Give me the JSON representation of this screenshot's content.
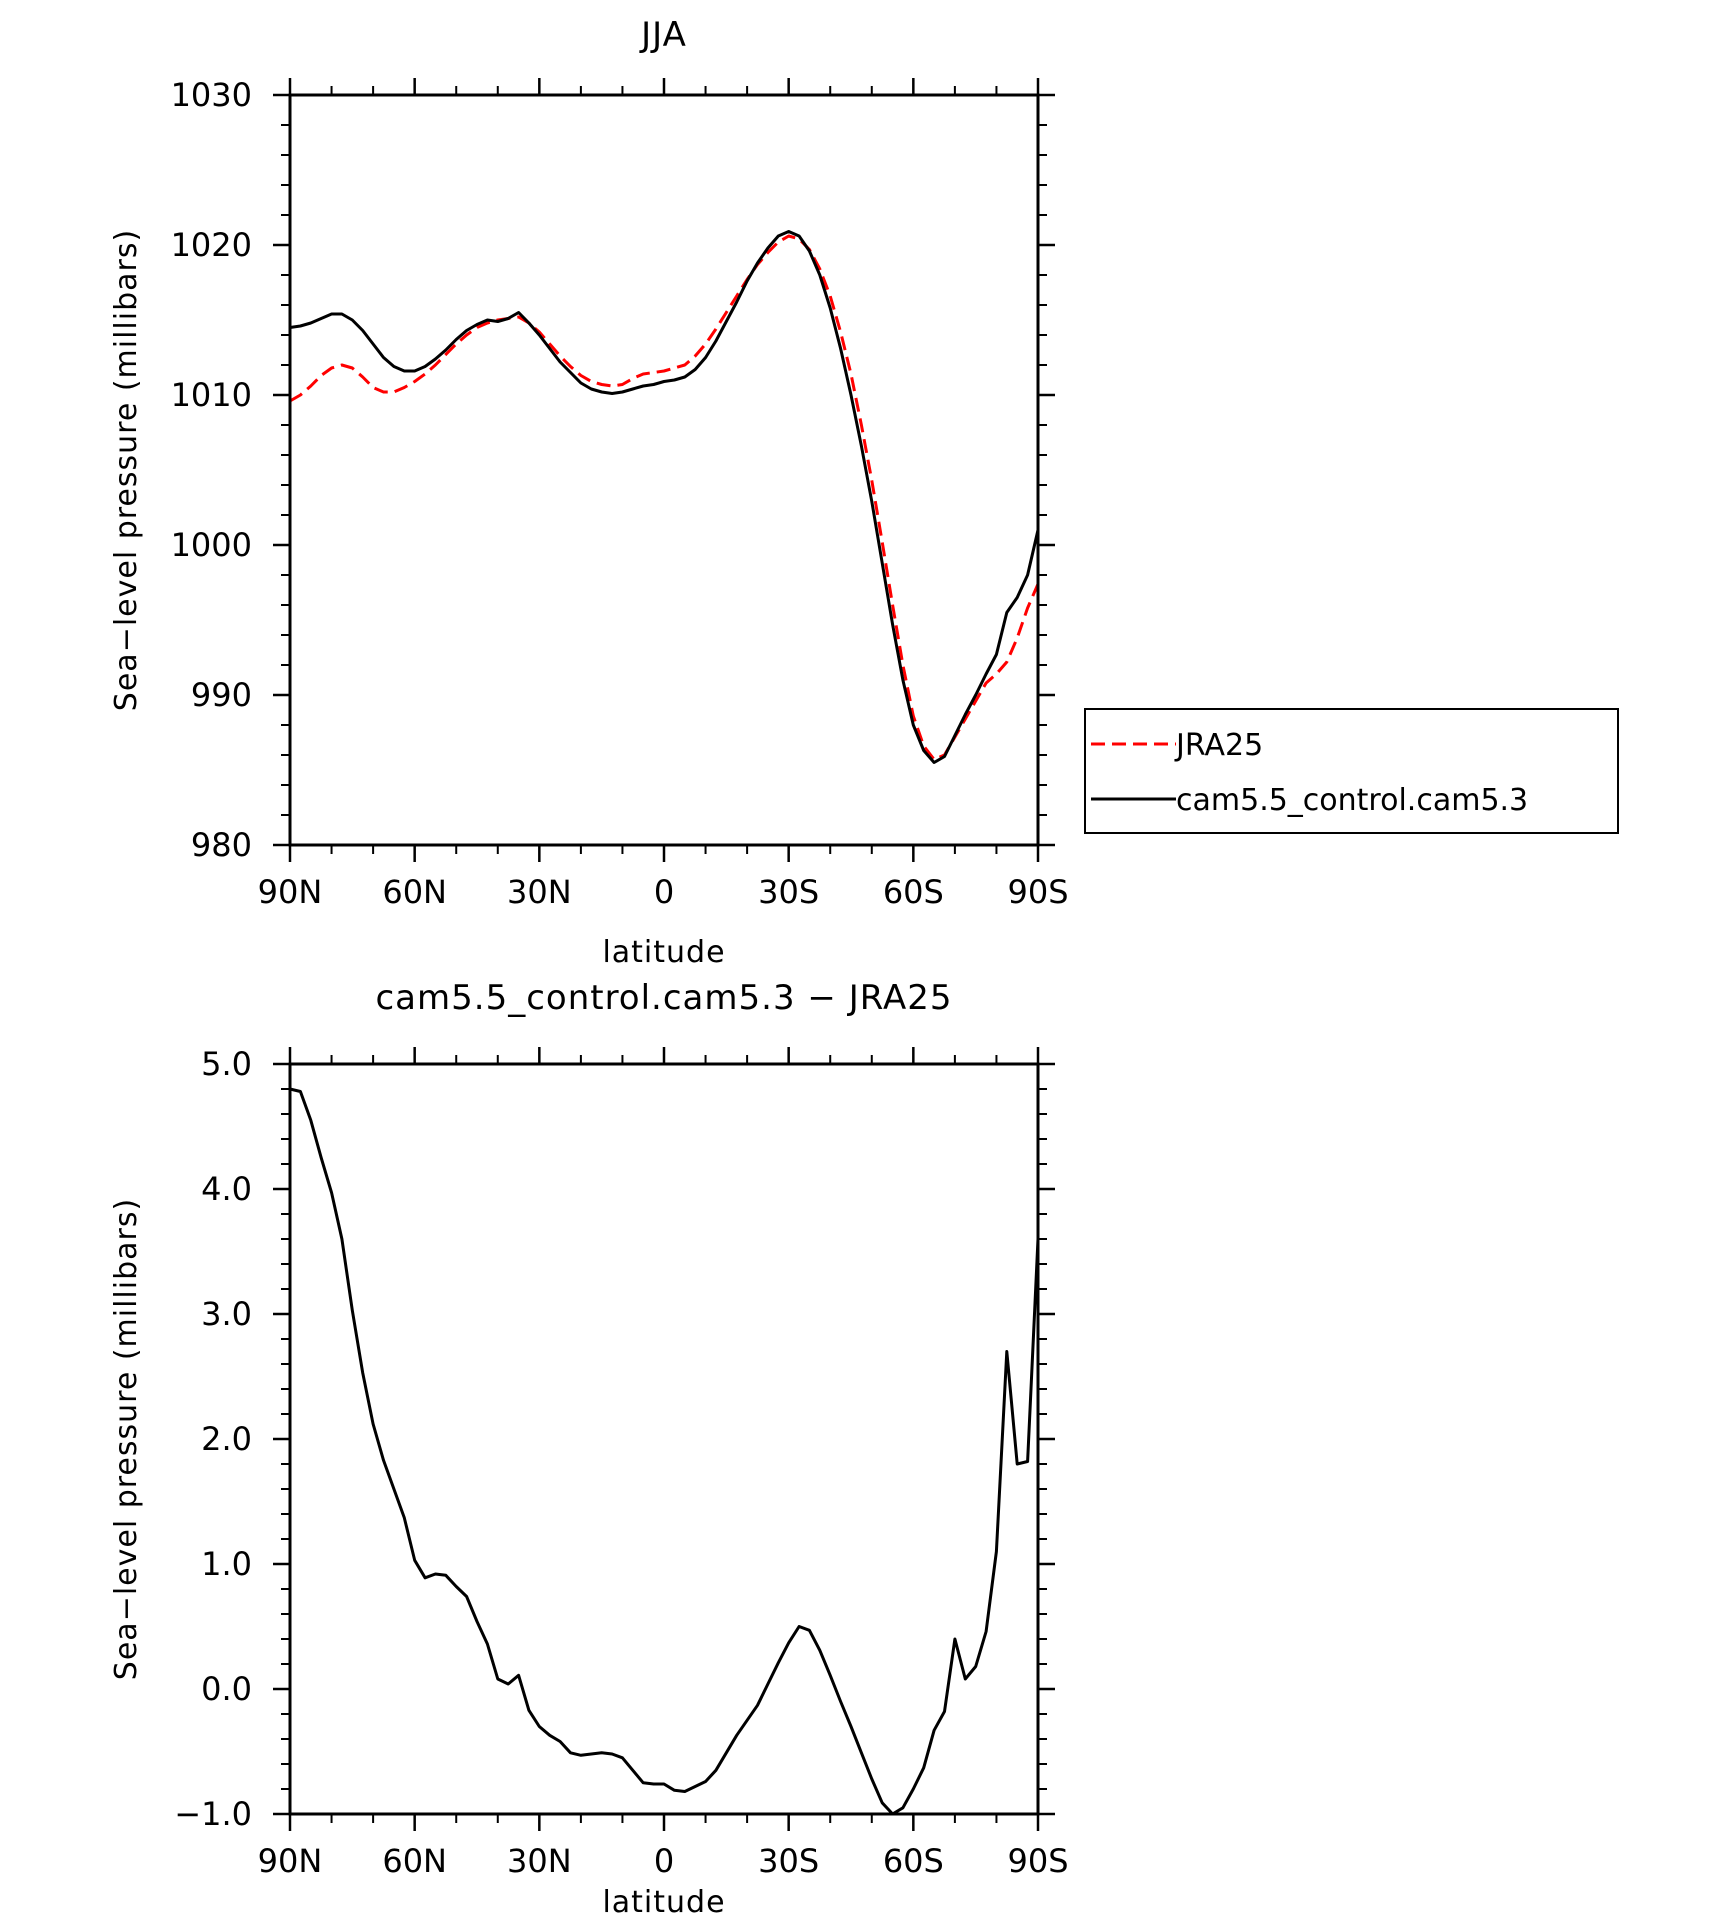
{
  "chart_data": [
    {
      "type": "line",
      "title": "JJA",
      "xlabel": "latitude",
      "ylabel": "Sea−level pressure (millibars)",
      "xlim": [
        90,
        -90
      ],
      "ylim": [
        980,
        1030
      ],
      "x_ticks": [
        {
          "value": 90,
          "label": "90N"
        },
        {
          "value": 60,
          "label": "60N"
        },
        {
          "value": 30,
          "label": "30N"
        },
        {
          "value": 0,
          "label": "0"
        },
        {
          "value": -30,
          "label": "30S"
        },
        {
          "value": -60,
          "label": "60S"
        },
        {
          "value": -90,
          "label": "90S"
        }
      ],
      "y_ticks": [
        {
          "value": 980,
          "label": "980"
        },
        {
          "value": 990,
          "label": "990"
        },
        {
          "value": 1000,
          "label": "1000"
        },
        {
          "value": 1010,
          "label": "1010"
        },
        {
          "value": 1020,
          "label": "1020"
        },
        {
          "value": 1030,
          "label": "1030"
        }
      ],
      "grid": false,
      "legend_position": "right",
      "series": [
        {
          "name": "JRA25",
          "color": "#ff0000",
          "dash": true,
          "points": [
            [
              90,
              1009.6
            ],
            [
              87.5,
              1010.0
            ],
            [
              85,
              1010.6
            ],
            [
              82.5,
              1011.3
            ],
            [
              80,
              1011.8
            ],
            [
              77.5,
              1012.0
            ],
            [
              75,
              1011.8
            ],
            [
              72.5,
              1011.2
            ],
            [
              70,
              1010.5
            ],
            [
              67.5,
              1010.2
            ],
            [
              65,
              1010.2
            ],
            [
              62.5,
              1010.5
            ],
            [
              60,
              1010.9
            ],
            [
              57.5,
              1011.4
            ],
            [
              55,
              1012.0
            ],
            [
              52.5,
              1012.7
            ],
            [
              50,
              1013.4
            ],
            [
              47.5,
              1014.0
            ],
            [
              45,
              1014.5
            ],
            [
              42.5,
              1014.8
            ],
            [
              40,
              1015.0
            ],
            [
              37.5,
              1015.1
            ],
            [
              35,
              1015.2
            ],
            [
              32.5,
              1014.8
            ],
            [
              30,
              1014.2
            ],
            [
              27.5,
              1013.4
            ],
            [
              25,
              1012.6
            ],
            [
              22.5,
              1011.9
            ],
            [
              20,
              1011.3
            ],
            [
              17.5,
              1010.9
            ],
            [
              15,
              1010.7
            ],
            [
              12.5,
              1010.6
            ],
            [
              10,
              1010.7
            ],
            [
              7.5,
              1011.1
            ],
            [
              5,
              1011.4
            ],
            [
              2.5,
              1011.5
            ],
            [
              0,
              1011.6
            ],
            [
              -2.5,
              1011.8
            ],
            [
              -5,
              1012.0
            ],
            [
              -7.5,
              1012.6
            ],
            [
              -10,
              1013.4
            ],
            [
              -12.5,
              1014.4
            ],
            [
              -15,
              1015.5
            ],
            [
              -17.5,
              1016.6
            ],
            [
              -20,
              1017.7
            ],
            [
              -22.5,
              1018.7
            ],
            [
              -25,
              1019.5
            ],
            [
              -27.5,
              1020.2
            ],
            [
              -30,
              1020.6
            ],
            [
              -32.5,
              1020.4
            ],
            [
              -35,
              1019.7
            ],
            [
              -37.5,
              1018.4
            ],
            [
              -40,
              1016.6
            ],
            [
              -42.5,
              1014.2
            ],
            [
              -45,
              1011.4
            ],
            [
              -47.5,
              1008.0
            ],
            [
              -50,
              1004.3
            ],
            [
              -52.5,
              1000.2
            ],
            [
              -55,
              996.0
            ],
            [
              -57.5,
              992.0
            ],
            [
              -60,
              988.6
            ],
            [
              -62.5,
              986.6
            ],
            [
              -65,
              985.7
            ],
            [
              -67.5,
              986.0
            ],
            [
              -70,
              987.2
            ],
            [
              -72.5,
              988.4
            ],
            [
              -75,
              989.6
            ],
            [
              -77.5,
              990.8
            ],
            [
              -80,
              991.4
            ],
            [
              -82.5,
              992.2
            ],
            [
              -85,
              993.8
            ],
            [
              -87.5,
              995.8
            ],
            [
              -90,
              997.4
            ]
          ]
        },
        {
          "name": "cam5.5_control.cam5.3",
          "color": "#000000",
          "dash": false,
          "points": [
            [
              90,
              1014.5
            ],
            [
              87.5,
              1014.6
            ],
            [
              85,
              1014.8
            ],
            [
              82.5,
              1015.1
            ],
            [
              80,
              1015.4
            ],
            [
              77.5,
              1015.4
            ],
            [
              75,
              1015.0
            ],
            [
              72.5,
              1014.3
            ],
            [
              70,
              1013.4
            ],
            [
              67.5,
              1012.5
            ],
            [
              65,
              1011.9
            ],
            [
              62.5,
              1011.6
            ],
            [
              60,
              1011.6
            ],
            [
              57.5,
              1011.9
            ],
            [
              55,
              1012.4
            ],
            [
              52.5,
              1013.0
            ],
            [
              50,
              1013.7
            ],
            [
              47.5,
              1014.3
            ],
            [
              45,
              1014.7
            ],
            [
              42.5,
              1015.0
            ],
            [
              40,
              1014.9
            ],
            [
              37.5,
              1015.1
            ],
            [
              35,
              1015.5
            ],
            [
              32.5,
              1014.8
            ],
            [
              30,
              1014.0
            ],
            [
              27.5,
              1013.1
            ],
            [
              25,
              1012.2
            ],
            [
              22.5,
              1011.5
            ],
            [
              20,
              1010.8
            ],
            [
              17.5,
              1010.4
            ],
            [
              15,
              1010.2
            ],
            [
              12.5,
              1010.1
            ],
            [
              10,
              1010.2
            ],
            [
              7.5,
              1010.4
            ],
            [
              5,
              1010.6
            ],
            [
              2.5,
              1010.7
            ],
            [
              0,
              1010.9
            ],
            [
              -2.5,
              1011.0
            ],
            [
              -5,
              1011.2
            ],
            [
              -7.5,
              1011.7
            ],
            [
              -10,
              1012.5
            ],
            [
              -12.5,
              1013.6
            ],
            [
              -15,
              1014.9
            ],
            [
              -17.5,
              1016.2
            ],
            [
              -20,
              1017.6
            ],
            [
              -22.5,
              1018.8
            ],
            [
              -25,
              1019.8
            ],
            [
              -27.5,
              1020.6
            ],
            [
              -30,
              1020.9
            ],
            [
              -32.5,
              1020.6
            ],
            [
              -35,
              1019.6
            ],
            [
              -37.5,
              1018.0
            ],
            [
              -40,
              1015.8
            ],
            [
              -42.5,
              1013.1
            ],
            [
              -45,
              1010.0
            ],
            [
              -47.5,
              1006.6
            ],
            [
              -50,
              1002.9
            ],
            [
              -52.5,
              998.8
            ],
            [
              -55,
              994.7
            ],
            [
              -57.5,
              991.0
            ],
            [
              -60,
              988.0
            ],
            [
              -62.5,
              986.3
            ],
            [
              -65,
              985.5
            ],
            [
              -67.5,
              985.9
            ],
            [
              -70,
              987.3
            ],
            [
              -72.5,
              988.7
            ],
            [
              -75,
              990.0
            ],
            [
              -77.5,
              991.4
            ],
            [
              -80,
              992.7
            ],
            [
              -82.5,
              995.5
            ],
            [
              -85,
              996.5
            ],
            [
              -87.5,
              998.0
            ],
            [
              -90,
              1001.0
            ]
          ]
        }
      ]
    },
    {
      "type": "line",
      "title": "cam5.5_control.cam5.3 − JRA25",
      "xlabel": "latitude",
      "ylabel": "Sea−level pressure (millibars)",
      "xlim": [
        90,
        -90
      ],
      "ylim": [
        -1.0,
        5.0
      ],
      "x_ticks": [
        {
          "value": 90,
          "label": "90N"
        },
        {
          "value": 60,
          "label": "60N"
        },
        {
          "value": 30,
          "label": "30N"
        },
        {
          "value": 0,
          "label": "0"
        },
        {
          "value": -30,
          "label": "30S"
        },
        {
          "value": -60,
          "label": "60S"
        },
        {
          "value": -90,
          "label": "90S"
        }
      ],
      "y_ticks": [
        {
          "value": -1.0,
          "label": "−1.0"
        },
        {
          "value": 0.0,
          "label": "0.0"
        },
        {
          "value": 1.0,
          "label": "1.0"
        },
        {
          "value": 2.0,
          "label": "2.0"
        },
        {
          "value": 3.0,
          "label": "3.0"
        },
        {
          "value": 4.0,
          "label": "4.0"
        },
        {
          "value": 5.0,
          "label": "5.0"
        }
      ],
      "grid": false,
      "series": [
        {
          "color": "#000000",
          "dash": false,
          "points": [
            [
              90,
              4.8
            ],
            [
              87.5,
              4.78
            ],
            [
              85,
              4.55
            ],
            [
              82.5,
              4.25
            ],
            [
              80,
              3.97
            ],
            [
              77.5,
              3.6
            ],
            [
              75,
              3.03
            ],
            [
              72.5,
              2.53
            ],
            [
              70,
              2.12
            ],
            [
              67.5,
              1.83
            ],
            [
              65,
              1.6
            ],
            [
              62.5,
              1.37
            ],
            [
              60,
              1.03
            ],
            [
              57.5,
              0.89
            ],
            [
              55,
              0.92
            ],
            [
              52.5,
              0.91
            ],
            [
              50,
              0.82
            ],
            [
              47.5,
              0.74
            ],
            [
              45,
              0.54
            ],
            [
              42.5,
              0.36
            ],
            [
              40,
              0.08
            ],
            [
              37.5,
              0.04
            ],
            [
              35,
              0.11
            ],
            [
              32.5,
              -0.17
            ],
            [
              30,
              -0.3
            ],
            [
              27.5,
              -0.37
            ],
            [
              25,
              -0.42
            ],
            [
              22.5,
              -0.51
            ],
            [
              20,
              -0.53
            ],
            [
              17.5,
              -0.52
            ],
            [
              15,
              -0.51
            ],
            [
              12.5,
              -0.52
            ],
            [
              10,
              -0.55
            ],
            [
              7.5,
              -0.65
            ],
            [
              5,
              -0.75
            ],
            [
              2.5,
              -0.76
            ],
            [
              0,
              -0.76
            ],
            [
              -2.5,
              -0.81
            ],
            [
              -5,
              -0.82
            ],
            [
              -7.5,
              -0.78
            ],
            [
              -10,
              -0.74
            ],
            [
              -12.5,
              -0.65
            ],
            [
              -15,
              -0.51
            ],
            [
              -17.5,
              -0.37
            ],
            [
              -20,
              -0.25
            ],
            [
              -22.5,
              -0.13
            ],
            [
              -25,
              0.04
            ],
            [
              -27.5,
              0.21
            ],
            [
              -30,
              0.37
            ],
            [
              -32.5,
              0.5
            ],
            [
              -35,
              0.47
            ],
            [
              -37.5,
              0.31
            ],
            [
              -40,
              0.11
            ],
            [
              -42.5,
              -0.1
            ],
            [
              -45,
              -0.3
            ],
            [
              -47.5,
              -0.51
            ],
            [
              -50,
              -0.72
            ],
            [
              -52.5,
              -0.91
            ],
            [
              -55,
              -1.0
            ],
            [
              -57.5,
              -0.95
            ],
            [
              -60,
              -0.8
            ],
            [
              -62.5,
              -0.63
            ],
            [
              -65,
              -0.33
            ],
            [
              -67.5,
              -0.18
            ],
            [
              -70,
              0.4
            ],
            [
              -72.5,
              0.08
            ],
            [
              -75,
              0.18
            ],
            [
              -77.5,
              0.46
            ],
            [
              -80,
              1.1
            ],
            [
              -82.5,
              2.7
            ],
            [
              -85,
              1.8
            ],
            [
              -87.5,
              1.82
            ],
            [
              -90,
              3.6
            ]
          ]
        }
      ]
    }
  ]
}
